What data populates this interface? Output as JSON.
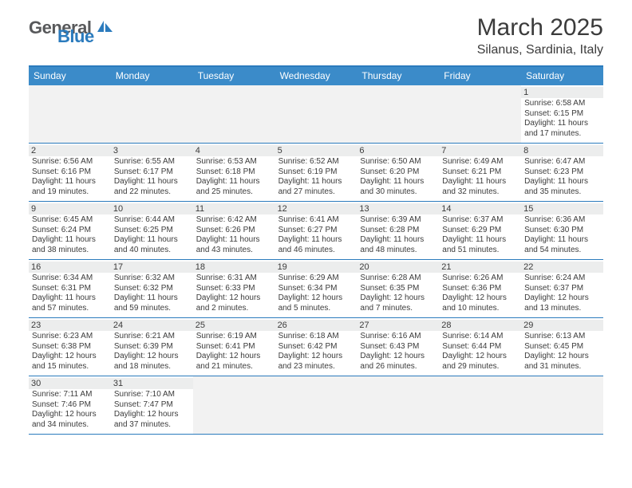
{
  "logo": {
    "part1": "General",
    "part2": "Blue"
  },
  "title": "March 2025",
  "location": "Silanus, Sardinia, Italy",
  "colors": {
    "header_bg": "#3b8bc9",
    "border": "#2b7bbd",
    "text": "#3b3b3b",
    "daynum_bg": "#eceded",
    "blank_bg": "#f2f2f2",
    "logo_gray": "#58595b",
    "logo_blue": "#2b7bbd"
  },
  "day_names": [
    "Sunday",
    "Monday",
    "Tuesday",
    "Wednesday",
    "Thursday",
    "Friday",
    "Saturday"
  ],
  "weeks": [
    [
      {
        "blank": true
      },
      {
        "blank": true
      },
      {
        "blank": true
      },
      {
        "blank": true
      },
      {
        "blank": true
      },
      {
        "blank": true
      },
      {
        "day": "1",
        "sunrise": "Sunrise: 6:58 AM",
        "sunset": "Sunset: 6:15 PM",
        "daylight": "Daylight: 11 hours and 17 minutes."
      }
    ],
    [
      {
        "day": "2",
        "sunrise": "Sunrise: 6:56 AM",
        "sunset": "Sunset: 6:16 PM",
        "daylight": "Daylight: 11 hours and 19 minutes."
      },
      {
        "day": "3",
        "sunrise": "Sunrise: 6:55 AM",
        "sunset": "Sunset: 6:17 PM",
        "daylight": "Daylight: 11 hours and 22 minutes."
      },
      {
        "day": "4",
        "sunrise": "Sunrise: 6:53 AM",
        "sunset": "Sunset: 6:18 PM",
        "daylight": "Daylight: 11 hours and 25 minutes."
      },
      {
        "day": "5",
        "sunrise": "Sunrise: 6:52 AM",
        "sunset": "Sunset: 6:19 PM",
        "daylight": "Daylight: 11 hours and 27 minutes."
      },
      {
        "day": "6",
        "sunrise": "Sunrise: 6:50 AM",
        "sunset": "Sunset: 6:20 PM",
        "daylight": "Daylight: 11 hours and 30 minutes."
      },
      {
        "day": "7",
        "sunrise": "Sunrise: 6:49 AM",
        "sunset": "Sunset: 6:21 PM",
        "daylight": "Daylight: 11 hours and 32 minutes."
      },
      {
        "day": "8",
        "sunrise": "Sunrise: 6:47 AM",
        "sunset": "Sunset: 6:23 PM",
        "daylight": "Daylight: 11 hours and 35 minutes."
      }
    ],
    [
      {
        "day": "9",
        "sunrise": "Sunrise: 6:45 AM",
        "sunset": "Sunset: 6:24 PM",
        "daylight": "Daylight: 11 hours and 38 minutes."
      },
      {
        "day": "10",
        "sunrise": "Sunrise: 6:44 AM",
        "sunset": "Sunset: 6:25 PM",
        "daylight": "Daylight: 11 hours and 40 minutes."
      },
      {
        "day": "11",
        "sunrise": "Sunrise: 6:42 AM",
        "sunset": "Sunset: 6:26 PM",
        "daylight": "Daylight: 11 hours and 43 minutes."
      },
      {
        "day": "12",
        "sunrise": "Sunrise: 6:41 AM",
        "sunset": "Sunset: 6:27 PM",
        "daylight": "Daylight: 11 hours and 46 minutes."
      },
      {
        "day": "13",
        "sunrise": "Sunrise: 6:39 AM",
        "sunset": "Sunset: 6:28 PM",
        "daylight": "Daylight: 11 hours and 48 minutes."
      },
      {
        "day": "14",
        "sunrise": "Sunrise: 6:37 AM",
        "sunset": "Sunset: 6:29 PM",
        "daylight": "Daylight: 11 hours and 51 minutes."
      },
      {
        "day": "15",
        "sunrise": "Sunrise: 6:36 AM",
        "sunset": "Sunset: 6:30 PM",
        "daylight": "Daylight: 11 hours and 54 minutes."
      }
    ],
    [
      {
        "day": "16",
        "sunrise": "Sunrise: 6:34 AM",
        "sunset": "Sunset: 6:31 PM",
        "daylight": "Daylight: 11 hours and 57 minutes."
      },
      {
        "day": "17",
        "sunrise": "Sunrise: 6:32 AM",
        "sunset": "Sunset: 6:32 PM",
        "daylight": "Daylight: 11 hours and 59 minutes."
      },
      {
        "day": "18",
        "sunrise": "Sunrise: 6:31 AM",
        "sunset": "Sunset: 6:33 PM",
        "daylight": "Daylight: 12 hours and 2 minutes."
      },
      {
        "day": "19",
        "sunrise": "Sunrise: 6:29 AM",
        "sunset": "Sunset: 6:34 PM",
        "daylight": "Daylight: 12 hours and 5 minutes."
      },
      {
        "day": "20",
        "sunrise": "Sunrise: 6:28 AM",
        "sunset": "Sunset: 6:35 PM",
        "daylight": "Daylight: 12 hours and 7 minutes."
      },
      {
        "day": "21",
        "sunrise": "Sunrise: 6:26 AM",
        "sunset": "Sunset: 6:36 PM",
        "daylight": "Daylight: 12 hours and 10 minutes."
      },
      {
        "day": "22",
        "sunrise": "Sunrise: 6:24 AM",
        "sunset": "Sunset: 6:37 PM",
        "daylight": "Daylight: 12 hours and 13 minutes."
      }
    ],
    [
      {
        "day": "23",
        "sunrise": "Sunrise: 6:23 AM",
        "sunset": "Sunset: 6:38 PM",
        "daylight": "Daylight: 12 hours and 15 minutes."
      },
      {
        "day": "24",
        "sunrise": "Sunrise: 6:21 AM",
        "sunset": "Sunset: 6:39 PM",
        "daylight": "Daylight: 12 hours and 18 minutes."
      },
      {
        "day": "25",
        "sunrise": "Sunrise: 6:19 AM",
        "sunset": "Sunset: 6:41 PM",
        "daylight": "Daylight: 12 hours and 21 minutes."
      },
      {
        "day": "26",
        "sunrise": "Sunrise: 6:18 AM",
        "sunset": "Sunset: 6:42 PM",
        "daylight": "Daylight: 12 hours and 23 minutes."
      },
      {
        "day": "27",
        "sunrise": "Sunrise: 6:16 AM",
        "sunset": "Sunset: 6:43 PM",
        "daylight": "Daylight: 12 hours and 26 minutes."
      },
      {
        "day": "28",
        "sunrise": "Sunrise: 6:14 AM",
        "sunset": "Sunset: 6:44 PM",
        "daylight": "Daylight: 12 hours and 29 minutes."
      },
      {
        "day": "29",
        "sunrise": "Sunrise: 6:13 AM",
        "sunset": "Sunset: 6:45 PM",
        "daylight": "Daylight: 12 hours and 31 minutes."
      }
    ],
    [
      {
        "day": "30",
        "sunrise": "Sunrise: 7:11 AM",
        "sunset": "Sunset: 7:46 PM",
        "daylight": "Daylight: 12 hours and 34 minutes."
      },
      {
        "day": "31",
        "sunrise": "Sunrise: 7:10 AM",
        "sunset": "Sunset: 7:47 PM",
        "daylight": "Daylight: 12 hours and 37 minutes."
      },
      {
        "blank": true
      },
      {
        "blank": true
      },
      {
        "blank": true
      },
      {
        "blank": true
      },
      {
        "blank": true
      }
    ]
  ]
}
